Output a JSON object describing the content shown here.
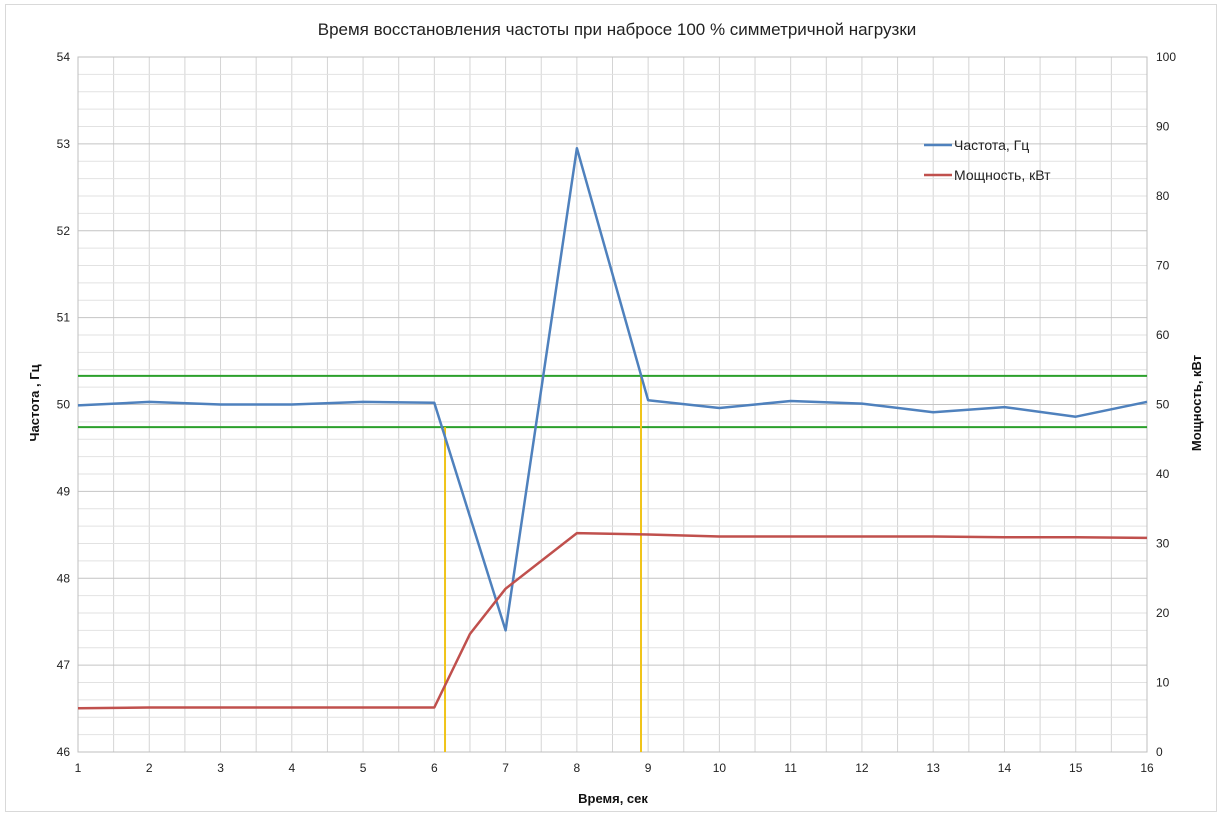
{
  "chart_data": {
    "type": "line",
    "title": "Время восстановления частоты при набросе 100 % симметричной нагрузки",
    "xlabel": "Время, сек",
    "ylabel_left": "Частота , Гц",
    "ylabel_right": "Мощность, кВт",
    "xlim": [
      1,
      16
    ],
    "ylim_left": [
      46,
      54
    ],
    "ylim_right": [
      0,
      100
    ],
    "x_ticks": [
      1,
      2,
      3,
      4,
      5,
      6,
      7,
      8,
      9,
      10,
      11,
      12,
      13,
      14,
      15,
      16
    ],
    "y_ticks_left": [
      46,
      47,
      48,
      49,
      50,
      51,
      52,
      53,
      54
    ],
    "y_ticks_right": [
      0,
      10,
      20,
      30,
      40,
      50,
      60,
      70,
      80,
      90,
      100
    ],
    "grid": true,
    "legend_position": "top-right",
    "series": [
      {
        "name": "Частота, Гц",
        "axis": "left",
        "color": "#4f81bd",
        "x": [
          1,
          2,
          3,
          4,
          5,
          6,
          7,
          8,
          9,
          10,
          11,
          12,
          13,
          14,
          15,
          16
        ],
        "values": [
          49.99,
          50.03,
          50.0,
          50.0,
          50.03,
          50.02,
          47.4,
          52.95,
          50.05,
          49.96,
          50.04,
          50.01,
          49.91,
          49.97,
          49.86,
          50.03
        ]
      },
      {
        "name": "Мощность, кВт",
        "axis": "right",
        "color": "#c0504d",
        "x": [
          1,
          2,
          3,
          4,
          5,
          6,
          6.5,
          7,
          8,
          9,
          10,
          11,
          12,
          13,
          14,
          15,
          16
        ],
        "values": [
          6.3,
          6.4,
          6.4,
          6.4,
          6.4,
          6.4,
          17.0,
          23.5,
          31.5,
          31.3,
          31.0,
          31.0,
          31.0,
          31.0,
          30.9,
          30.9,
          30.8
        ]
      }
    ],
    "reference_lines": {
      "horizontal_left": [
        {
          "y": 50.33,
          "color": "#2ca02c"
        },
        {
          "y": 49.74,
          "color": "#2ca02c"
        }
      ],
      "vertical": [
        {
          "x": 6.15,
          "color": "#f0c419",
          "y_top": 49.74
        },
        {
          "x": 8.9,
          "color": "#f0c419",
          "y_top": 50.33
        }
      ]
    }
  }
}
